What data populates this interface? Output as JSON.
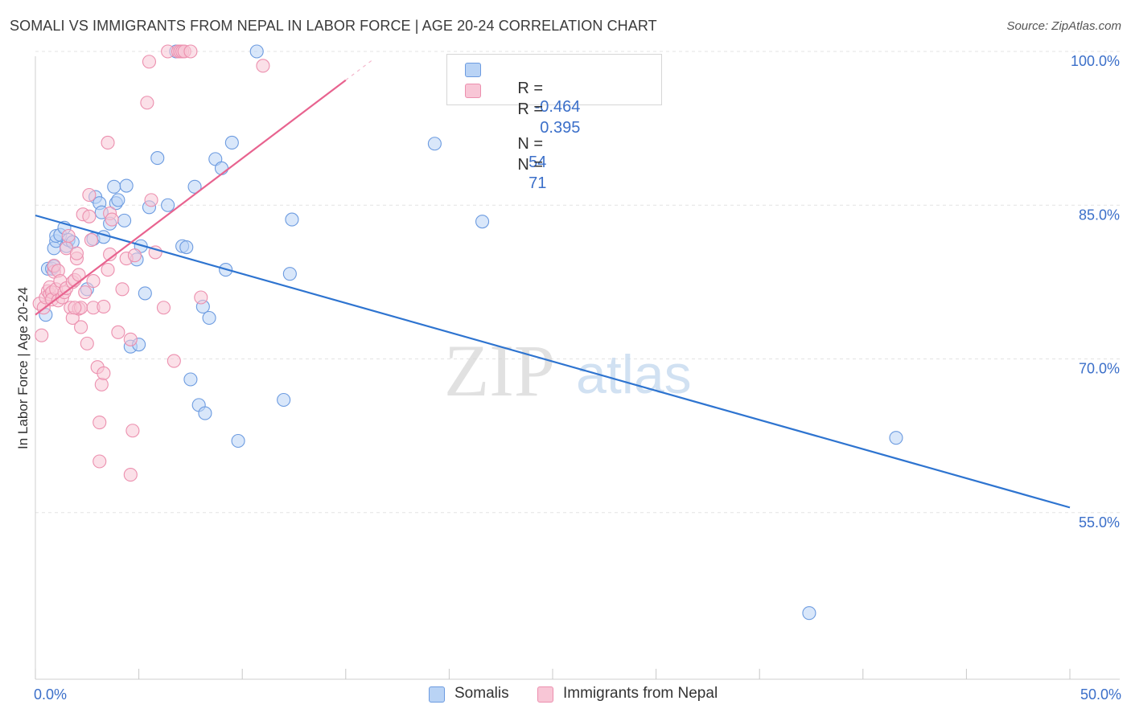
{
  "title": "SOMALI VS IMMIGRANTS FROM NEPAL IN LABOR FORCE | AGE 20-24 CORRELATION CHART",
  "source": "Source: ZipAtlas.com",
  "watermark": {
    "zip": "ZIP",
    "atlas": "atlas"
  },
  "legend_top": {
    "r_label": "R =",
    "n_label": "N =",
    "rows": [
      {
        "r": "-0.464",
        "n": "54"
      },
      {
        "r": "0.395",
        "n": "71"
      }
    ]
  },
  "colors": {
    "somali_fill": "#b9d3f5",
    "somali_stroke": "#6c9be0",
    "somali_line": "#2e74d0",
    "nepal_fill": "#f8c6d6",
    "nepal_stroke": "#ec8fae",
    "nepal_line": "#e8638f",
    "tick_label": "#3b6fc9",
    "grid": "#e3e3e3"
  },
  "chart_data": {
    "type": "scatter",
    "title": "SOMALI VS IMMIGRANTS FROM NEPAL IN LABOR FORCE | AGE 20-24 CORRELATION CHART",
    "xlabel": "",
    "ylabel": "In Labor Force | Age 20-24",
    "xlim": [
      0,
      50
    ],
    "ylim": [
      40,
      101.5
    ],
    "x_tick_labels": [
      {
        "value": 0,
        "label": "0.0%"
      },
      {
        "value": 50,
        "label": "50.0%"
      }
    ],
    "y_ticks": [
      {
        "value": 55,
        "label": "55.0%"
      },
      {
        "value": 70,
        "label": "70.0%"
      },
      {
        "value": 85,
        "label": "85.0%"
      },
      {
        "value": 100,
        "label": "100.0%"
      }
    ],
    "grid": true,
    "legend_position": "top-center",
    "series": [
      {
        "name": "Somalis",
        "r": -0.464,
        "n": 54,
        "trend": {
          "x": [
            0,
            50
          ],
          "y": [
            84.0,
            55.5
          ]
        },
        "points": [
          [
            0.5,
            74.3
          ],
          [
            0.6,
            78.8
          ],
          [
            0.8,
            78.8
          ],
          [
            0.9,
            79.0
          ],
          [
            0.9,
            80.8
          ],
          [
            1.0,
            81.5
          ],
          [
            1.0,
            82.0
          ],
          [
            1.2,
            82.1
          ],
          [
            1.4,
            82.8
          ],
          [
            1.5,
            81.0
          ],
          [
            1.6,
            81.6
          ],
          [
            1.8,
            81.4
          ],
          [
            2.5,
            76.8
          ],
          [
            2.8,
            81.7
          ],
          [
            2.9,
            85.8
          ],
          [
            3.1,
            85.2
          ],
          [
            3.2,
            84.3
          ],
          [
            3.3,
            81.9
          ],
          [
            3.6,
            83.2
          ],
          [
            3.8,
            86.8
          ],
          [
            3.9,
            85.2
          ],
          [
            4.0,
            85.5
          ],
          [
            4.3,
            83.5
          ],
          [
            4.4,
            86.9
          ],
          [
            4.6,
            71.2
          ],
          [
            4.9,
            79.7
          ],
          [
            5.0,
            71.4
          ],
          [
            5.1,
            81.0
          ],
          [
            5.3,
            76.4
          ],
          [
            5.5,
            84.8
          ],
          [
            5.9,
            89.6
          ],
          [
            6.4,
            85.0
          ],
          [
            6.8,
            100.0
          ],
          [
            7.1,
            81.0
          ],
          [
            7.3,
            80.9
          ],
          [
            7.5,
            68.0
          ],
          [
            7.7,
            86.8
          ],
          [
            7.9,
            65.5
          ],
          [
            8.1,
            75.1
          ],
          [
            8.2,
            64.7
          ],
          [
            8.4,
            74.0
          ],
          [
            8.7,
            89.5
          ],
          [
            9.0,
            88.6
          ],
          [
            9.2,
            78.7
          ],
          [
            9.5,
            91.1
          ],
          [
            9.8,
            62.0
          ],
          [
            10.7,
            100.0
          ],
          [
            12.0,
            66.0
          ],
          [
            12.3,
            78.3
          ],
          [
            12.4,
            83.6
          ],
          [
            19.3,
            91.0
          ],
          [
            21.6,
            83.4
          ],
          [
            41.6,
            62.3
          ],
          [
            37.4,
            45.2
          ]
        ]
      },
      {
        "name": "Immigrants from Nepal",
        "r": 0.395,
        "n": 71,
        "trend": {
          "x": [
            0,
            15
          ],
          "y": [
            74.3,
            97.2
          ]
        },
        "points": [
          [
            0.2,
            75.4
          ],
          [
            0.3,
            72.3
          ],
          [
            0.4,
            75.0
          ],
          [
            0.5,
            76.0
          ],
          [
            0.6,
            76.6
          ],
          [
            0.7,
            76.3
          ],
          [
            0.7,
            77.0
          ],
          [
            0.8,
            76.5
          ],
          [
            0.8,
            75.8
          ],
          [
            0.9,
            78.5
          ],
          [
            0.9,
            79.1
          ],
          [
            1.0,
            76.8
          ],
          [
            1.1,
            75.7
          ],
          [
            1.1,
            78.6
          ],
          [
            1.2,
            77.6
          ],
          [
            1.3,
            76.0
          ],
          [
            1.4,
            76.5
          ],
          [
            1.5,
            80.8
          ],
          [
            1.5,
            76.9
          ],
          [
            1.6,
            82.0
          ],
          [
            1.7,
            75.0
          ],
          [
            1.8,
            74.0
          ],
          [
            1.8,
            77.5
          ],
          [
            1.9,
            77.7
          ],
          [
            2.0,
            79.8
          ],
          [
            2.0,
            80.3
          ],
          [
            2.1,
            74.9
          ],
          [
            2.1,
            78.2
          ],
          [
            2.2,
            73.1
          ],
          [
            2.2,
            75.0
          ],
          [
            2.3,
            84.1
          ],
          [
            2.4,
            76.5
          ],
          [
            2.5,
            71.5
          ],
          [
            2.6,
            83.9
          ],
          [
            2.7,
            81.6
          ],
          [
            2.8,
            75.0
          ],
          [
            2.8,
            77.6
          ],
          [
            3.0,
            69.2
          ],
          [
            3.1,
            63.8
          ],
          [
            3.1,
            60.0
          ],
          [
            3.2,
            67.5
          ],
          [
            3.3,
            68.6
          ],
          [
            3.3,
            75.1
          ],
          [
            3.5,
            78.7
          ],
          [
            3.5,
            91.1
          ],
          [
            3.6,
            80.2
          ],
          [
            3.6,
            84.2
          ],
          [
            3.7,
            83.6
          ],
          [
            4.0,
            72.6
          ],
          [
            4.2,
            76.8
          ],
          [
            4.4,
            79.8
          ],
          [
            4.6,
            71.9
          ],
          [
            4.6,
            58.7
          ],
          [
            4.7,
            63.0
          ],
          [
            4.8,
            80.1
          ],
          [
            5.4,
            95.0
          ],
          [
            5.5,
            99.0
          ],
          [
            5.6,
            85.5
          ],
          [
            5.8,
            80.4
          ],
          [
            6.2,
            75.0
          ],
          [
            6.4,
            100.0
          ],
          [
            6.7,
            69.8
          ],
          [
            6.9,
            100.0
          ],
          [
            7.0,
            100.0
          ],
          [
            7.1,
            100.0
          ],
          [
            7.2,
            100.0
          ],
          [
            7.5,
            100.0
          ],
          [
            8.0,
            76.0
          ],
          [
            11.0,
            98.6
          ],
          [
            2.6,
            86.0
          ],
          [
            1.9,
            75.0
          ]
        ]
      }
    ]
  }
}
